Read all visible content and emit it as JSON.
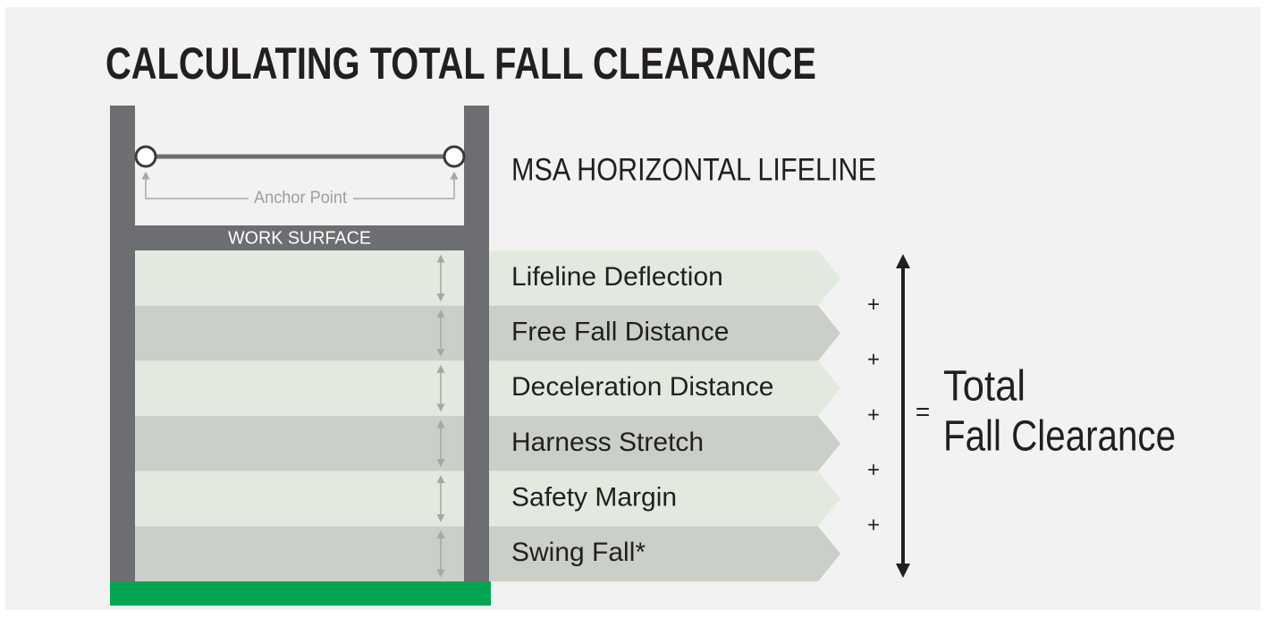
{
  "title": "CALCULATING TOTAL FALL CLEARANCE",
  "lifeline_label": "MSA HORIZONTAL LIFELINE",
  "anchor_label": "Anchor Point",
  "work_surface_label": "WORK SURFACE",
  "components": [
    "Lifeline Deflection",
    "Free Fall Distance",
    "Deceleration Distance",
    "Harness Stretch",
    "Safety Margin",
    "Swing Fall*"
  ],
  "operators": [
    "+",
    "+",
    "+",
    "+",
    "+"
  ],
  "equals": "=",
  "total": [
    "Total",
    "Fall Clearance"
  ]
}
